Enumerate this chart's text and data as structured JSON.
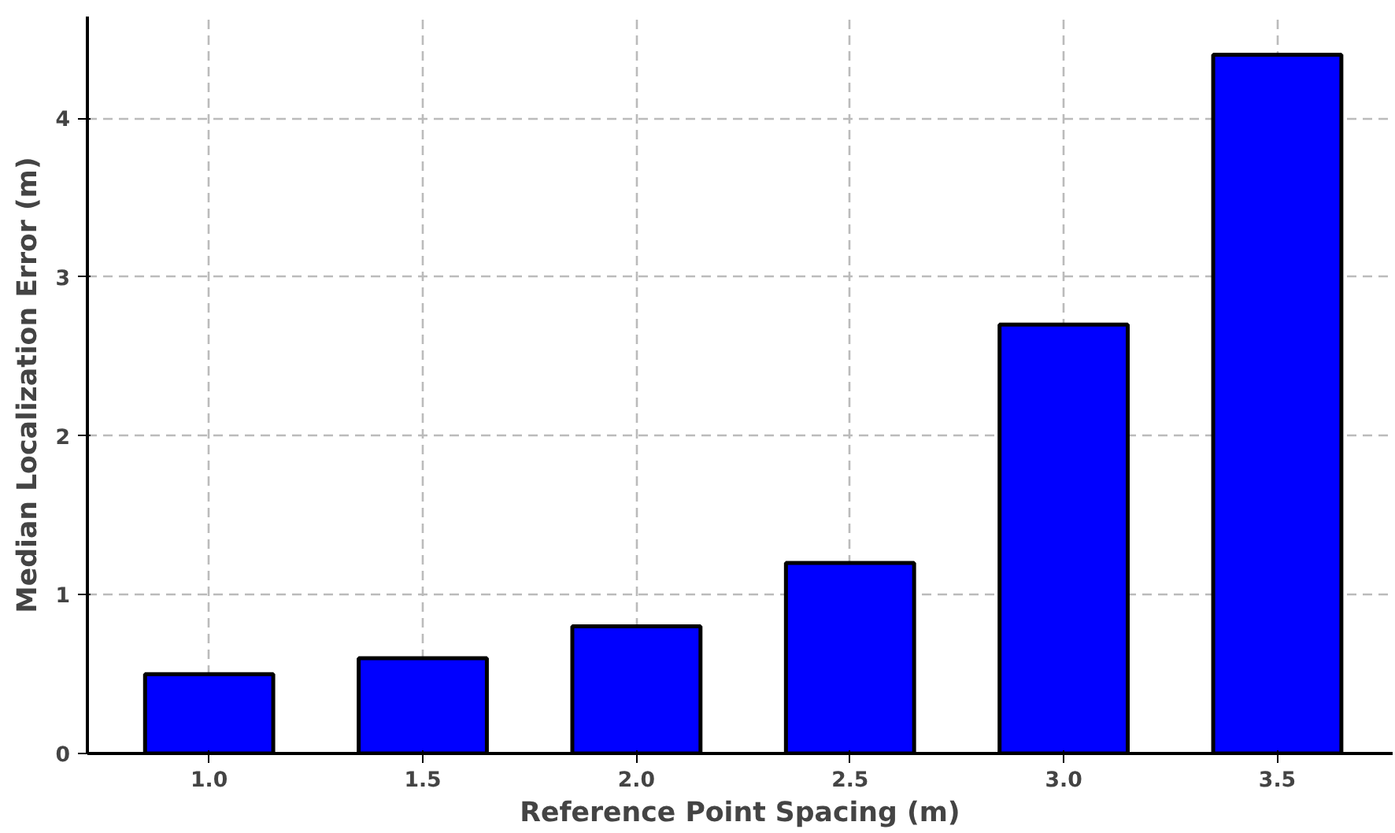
{
  "chart_data": {
    "type": "bar",
    "xlabel": "Reference Point Spacing (m)",
    "ylabel": "Median Localization Error (m)",
    "categories": [
      "1.0",
      "1.5",
      "2.0",
      "2.5",
      "3.0",
      "3.5"
    ],
    "values": [
      0.5,
      0.6,
      0.8,
      1.2,
      2.7,
      4.4
    ],
    "color": "#0000ff",
    "ylim": [
      0,
      4.64
    ],
    "yticks": [
      0,
      1,
      2,
      3,
      4
    ],
    "grid": true
  }
}
